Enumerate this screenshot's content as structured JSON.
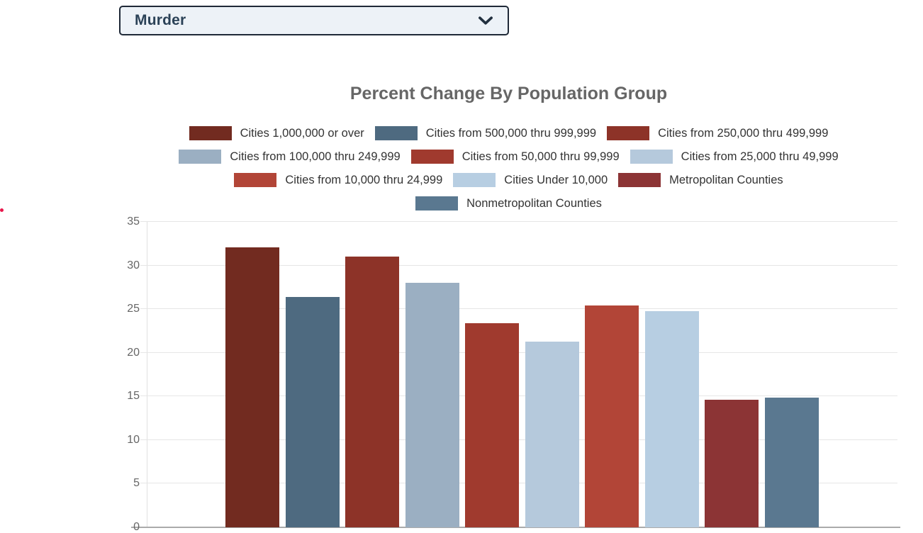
{
  "page": {
    "background": "#FFFFFF",
    "stray_dot_color": "#E8174B"
  },
  "dropdown": {
    "value": "Murder"
  },
  "chart_data": {
    "type": "bar",
    "title": "Percent Change By Population Group",
    "xlabel": "",
    "ylabel": "",
    "ylim": [
      0,
      35
    ],
    "yticks": [
      0,
      5,
      10,
      15,
      20,
      25,
      30,
      35
    ],
    "grid": true,
    "legend_position": "top-center",
    "legend_rows": [
      [
        0,
        1,
        2
      ],
      [
        3,
        4,
        5
      ],
      [
        6,
        7,
        8
      ],
      [
        9
      ]
    ],
    "series": [
      {
        "name": "Cities 1,000,000 or over",
        "value": 32.1,
        "color": "#722B20"
      },
      {
        "name": "Cities from 500,000 thru 999,999",
        "value": 26.4,
        "color": "#4E6A80"
      },
      {
        "name": "Cities from 250,000 thru 499,999",
        "value": 31.0,
        "color": "#8D3328"
      },
      {
        "name": "Cities from 100,000 thru 249,999",
        "value": 28.0,
        "color": "#9BAFC2"
      },
      {
        "name": "Cities from 50,000 thru 99,999",
        "value": 23.4,
        "color": "#A03A2E"
      },
      {
        "name": "Cities from 25,000 thru 49,999",
        "value": 21.3,
        "color": "#B5C9DC"
      },
      {
        "name": "Cities from 10,000 thru 24,999",
        "value": 25.4,
        "color": "#B24537"
      },
      {
        "name": "Cities Under 10,000",
        "value": 24.8,
        "color": "#B7CEE2"
      },
      {
        "name": "Metropolitan Counties",
        "value": 14.6,
        "color": "#8C3435"
      },
      {
        "name": "Nonmetropolitan Counties",
        "value": 14.9,
        "color": "#5A7890"
      }
    ]
  }
}
